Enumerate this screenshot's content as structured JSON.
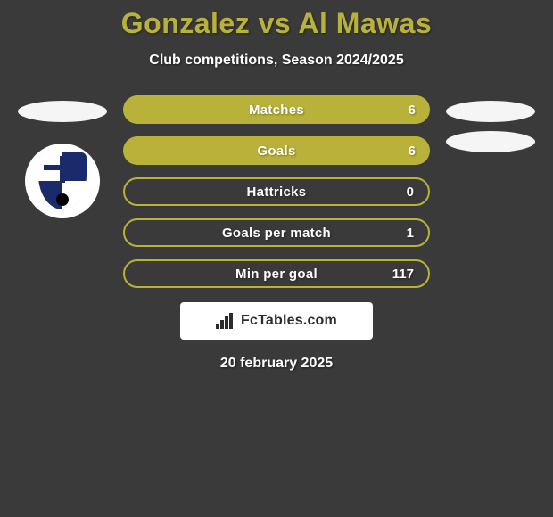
{
  "title": "Gonzalez vs Al Mawas",
  "subtitle": "Club competitions, Season 2024/2025",
  "date": "20 february 2025",
  "colors": {
    "pill_full": "#b9b23a",
    "pill_border": "#b9b23a",
    "pill_empty_bg": "#3a3a3a",
    "title_color": "#b9b23a",
    "background": "#3a3a3a",
    "oval": "#f5f5f5",
    "text": "#ffffff"
  },
  "stats": [
    {
      "label": "Matches",
      "value": "6",
      "fill": 1.0
    },
    {
      "label": "Goals",
      "value": "6",
      "fill": 1.0
    },
    {
      "label": "Hattricks",
      "value": "0",
      "fill": 0.0
    },
    {
      "label": "Goals per match",
      "value": "1",
      "fill": 0.0
    },
    {
      "label": "Min per goal",
      "value": "117",
      "fill": 0.0
    }
  ],
  "watermark": "FcTables.com",
  "left_side": {
    "ovals": 1,
    "has_logo": true
  },
  "right_side": {
    "ovals": 2,
    "has_logo": false
  }
}
